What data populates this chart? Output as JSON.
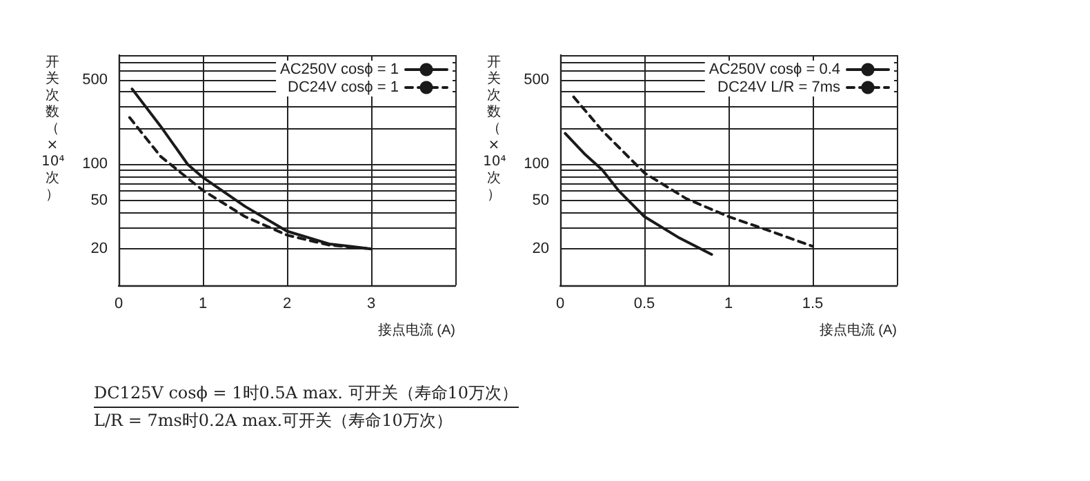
{
  "chart_data": [
    {
      "type": "line",
      "xlabel": "接点电流 (A)",
      "ylabel": "开关次数（×10⁴次）",
      "log": "y",
      "grid": true,
      "legend": "top right",
      "marker": "none",
      "xlim": [
        0,
        4
      ],
      "xticks": [
        0,
        1,
        2,
        3,
        {
          "value": 4,
          "label": null
        }
      ],
      "ylim": [
        10,
        800
      ],
      "yticks": [
        {
          "value": 10,
          "label": null
        },
        20,
        {
          "value": 30,
          "label": null
        },
        {
          "value": 40,
          "label": null
        },
        50,
        {
          "value": 60,
          "label": null
        },
        {
          "value": 70,
          "label": null
        },
        {
          "value": 80,
          "label": null
        },
        {
          "value": 90,
          "label": null
        },
        100,
        {
          "value": 200,
          "label": null
        },
        {
          "value": 300,
          "label": null
        },
        {
          "value": 400,
          "label": null
        },
        500,
        {
          "value": 600,
          "label": null
        },
        {
          "value": 700,
          "label": null
        },
        {
          "value": 800,
          "label": null
        }
      ],
      "series": [
        {
          "name": "AC250V cosϕ = 1",
          "color": "#1a1a1a",
          "line_style": "solid",
          "x": [
            0.16,
            0.5,
            0.82,
            1,
            1.5,
            2,
            2.5,
            3
          ],
          "values": [
            420,
            206,
            100,
            78,
            45,
            28,
            22,
            20
          ]
        },
        {
          "name": "DC24V cosϕ = 1",
          "color": "#1a1a1a",
          "line_style": "dashed",
          "x": [
            0.13,
            0.5,
            1,
            1.5,
            2,
            2.5,
            3
          ],
          "values": [
            244,
            116,
            61,
            37,
            26,
            21.5,
            20
          ]
        }
      ],
      "annotations": [
        "DC125V cosϕ = 1时0.5A max. 可开关（寿命10万次）",
        "L/R = 7ms时0.2A max.可开关（寿命10万次）"
      ]
    },
    {
      "type": "line",
      "xlabel": "接点电流 (A)",
      "ylabel": "开关次数（×10⁴次）",
      "log": "y",
      "grid": true,
      "legend": "top right",
      "marker": "none",
      "xlim": [
        0,
        2
      ],
      "xticks": [
        0,
        0.5,
        1,
        1.5,
        {
          "value": 2,
          "label": null
        }
      ],
      "ylim": [
        10,
        800
      ],
      "yticks": [
        {
          "value": 10,
          "label": null
        },
        20,
        {
          "value": 30,
          "label": null
        },
        {
          "value": 40,
          "label": null
        },
        50,
        {
          "value": 60,
          "label": null
        },
        {
          "value": 70,
          "label": null
        },
        {
          "value": 80,
          "label": null
        },
        {
          "value": 90,
          "label": null
        },
        100,
        {
          "value": 200,
          "label": null
        },
        {
          "value": 300,
          "label": null
        },
        {
          "value": 400,
          "label": null
        },
        500,
        {
          "value": 600,
          "label": null
        },
        {
          "value": 700,
          "label": null
        },
        {
          "value": 800,
          "label": null
        }
      ],
      "series": [
        {
          "name": "AC250V cosϕ = 0.4",
          "color": "#1a1a1a",
          "line_style": "solid",
          "x": [
            0.03,
            0.15,
            0.25,
            0.35,
            0.5,
            0.7,
            0.9
          ],
          "values": [
            180,
            120,
            90,
            60,
            37,
            25,
            18
          ]
        },
        {
          "name": "DC24V L/R = 7ms",
          "color": "#1a1a1a",
          "line_style": "dashed",
          "x": [
            0.08,
            0.25,
            0.5,
            0.75,
            1,
            1.25,
            1.5
          ],
          "values": [
            361,
            190,
            85,
            52,
            37,
            28,
            21
          ]
        }
      ]
    }
  ]
}
